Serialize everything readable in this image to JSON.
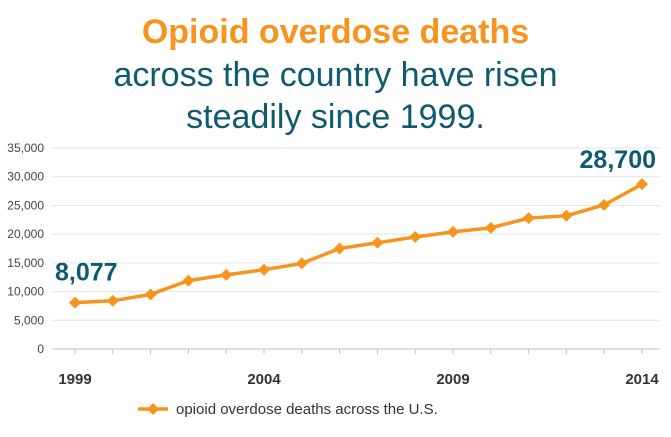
{
  "title": {
    "line1": "Opioid overdose deaths",
    "line2": "across the country have risen",
    "line3": "steadily since 1999."
  },
  "chart_data": {
    "type": "line",
    "x": [
      1999,
      2000,
      2001,
      2002,
      2003,
      2004,
      2005,
      2006,
      2007,
      2008,
      2009,
      2010,
      2011,
      2012,
      2013,
      2014
    ],
    "x_tick_labels": [
      "1999",
      "2004",
      "2009",
      "2014"
    ],
    "y_tick_labels": [
      "0",
      "5,000",
      "10,000",
      "15,000",
      "20,000",
      "25,000",
      "30,000",
      "35,000"
    ],
    "ylim": [
      0,
      35000
    ],
    "series": [
      {
        "name": "opioid overdose deaths across the U.S.",
        "values": [
          8077,
          8400,
          9500,
          11900,
          12900,
          13800,
          14900,
          17500,
          18500,
          19500,
          20400,
          21100,
          22800,
          23200,
          25100,
          28700
        ],
        "color": "#f7941d"
      }
    ],
    "annotations": [
      {
        "text": "8,077",
        "x": 1999,
        "y": 8077
      },
      {
        "text": "28,700",
        "x": 2014,
        "y": 28700
      }
    ],
    "grid": true,
    "legend": "bottom"
  }
}
